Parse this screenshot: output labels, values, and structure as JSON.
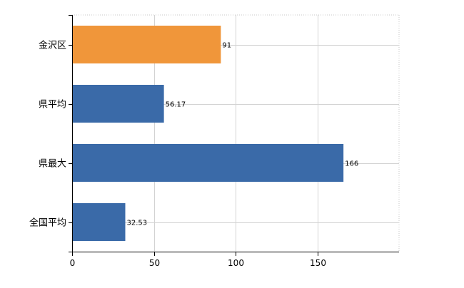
{
  "chart_data": {
    "type": "bar",
    "orientation": "horizontal",
    "categories": [
      "金沢区",
      "県平均",
      "県最大",
      "全国平均"
    ],
    "values": [
      91,
      56.17,
      166,
      32.53
    ],
    "value_labels": [
      "91",
      "56.17",
      "166",
      "32.53"
    ],
    "bar_colors": [
      "#f0963a",
      "#3a6aa8",
      "#3a6aa8",
      "#3a6aa8"
    ],
    "highlight_color": "#f0963a",
    "base_color": "#3a6aa8",
    "xlim": [
      0,
      200
    ],
    "xticks": [
      0,
      50,
      100,
      150
    ],
    "xtick_labels": [
      "0",
      "50",
      "100",
      "150"
    ],
    "grid": true,
    "title": "",
    "xlabel": "",
    "ylabel": ""
  }
}
